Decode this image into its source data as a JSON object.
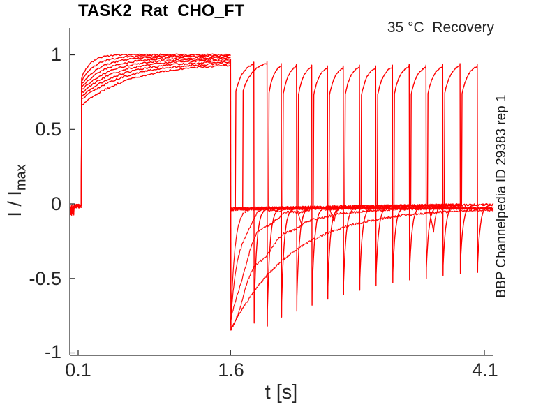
{
  "title": "TASK2  Rat  CHO_FT",
  "annotation": "35 °C  Recovery",
  "right_side_label": "BBP Channelpedia ID 29383 rep 1",
  "chart_data": {
    "type": "line",
    "title": "TASK2  Rat  CHO_FT",
    "subtitle": "35 °C  Recovery",
    "xlabel": "t [s]",
    "ylabel": "I / I_max",
    "ylabel_main": "I / I",
    "ylabel_sub": "max",
    "right_label": "BBP Channelpedia ID 29383 rep 1",
    "x_ticks": [
      "0.1",
      "1.6",
      "4.1"
    ],
    "y_ticks": [
      "1",
      "0.5",
      "0",
      "-0.5",
      "-1"
    ],
    "x_tick_values": [
      0.1,
      1.6,
      4.1
    ],
    "y_tick_values": [
      1,
      0.5,
      0,
      -0.5,
      -1
    ],
    "xlim": [
      0.018,
      4.19
    ],
    "ylim": [
      -1.02,
      1.18
    ],
    "grid": false,
    "legend": null,
    "line_color": "#ff0000",
    "axis_color": "#262626",
    "description": "Normalized current I/Imax vs time. Conditioning depolarization 0.13-1.6 s activates current to ~1.0; at 1.6 s tail spike to -0.85 followed by 15 overlaid recovery test pulses of increasing delay; baseline noise band slightly below 0.",
    "baseline": {
      "start_level": -0.035,
      "end_level": -0.005,
      "noise": 0.024,
      "pre_stim_level": -0.015,
      "pre_stim_dip": -0.06,
      "band_end_t": 3.87,
      "thin_end_t": 4.19
    },
    "conditioning_pulse": {
      "t_on": 0.131,
      "t_off": 1.6,
      "knee_range": [
        0.7,
        0.84
      ],
      "plateau_range": [
        0.952,
        1.0
      ],
      "tau_range": [
        0.09,
        0.45
      ],
      "n_sweeps": 8,
      "inner_sweep": {
        "knee": 0.66,
        "plateau": 0.945,
        "tau": 0.5
      },
      "spike_depth": -0.85,
      "recovery_taus": [
        0.04,
        0.09,
        0.18,
        0.35,
        0.6
      ],
      "recovery_wiggle": [
        0,
        1,
        1,
        1,
        0
      ]
    },
    "test_pulses": [
      {
        "start": 1.648,
        "end": 1.83,
        "peak": 0.955,
        "depth": -0.8
      },
      {
        "start": 1.72,
        "end": 1.96,
        "peak": 0.96,
        "depth": -0.82
      },
      {
        "start": 1.975,
        "end": 2.1,
        "peak": 0.945,
        "depth": -0.76
      },
      {
        "start": 2.115,
        "end": 2.25,
        "peak": 0.94,
        "depth": -0.72
      },
      {
        "start": 2.265,
        "end": 2.4,
        "peak": 0.935,
        "depth": -0.68
      },
      {
        "start": 2.415,
        "end": 2.555,
        "peak": 0.93,
        "depth": -0.64
      },
      {
        "start": 2.57,
        "end": 2.71,
        "peak": 0.93,
        "depth": -0.61
      },
      {
        "start": 2.725,
        "end": 2.87,
        "peak": 0.935,
        "depth": -0.58
      },
      {
        "start": 2.885,
        "end": 3.03,
        "peak": 0.93,
        "depth": -0.55
      },
      {
        "start": 3.045,
        "end": 3.195,
        "peak": 0.935,
        "depth": -0.53
      },
      {
        "start": 3.21,
        "end": 3.36,
        "peak": 0.94,
        "depth": -0.51
      },
      {
        "start": 3.375,
        "end": 3.525,
        "peak": 0.935,
        "depth": -0.5
      },
      {
        "start": 3.54,
        "end": 3.69,
        "peak": 0.94,
        "depth": -0.48
      },
      {
        "start": 3.705,
        "end": 3.86,
        "peak": 0.945,
        "depth": -0.47
      },
      {
        "start": 3.875,
        "end": 4.03,
        "peak": 0.94,
        "depth": -0.46
      }
    ],
    "extra_dips": [
      {
        "t": 2.3,
        "depth": -0.14
      },
      {
        "t": 2.62,
        "depth": -0.12
      },
      {
        "t": 3.6,
        "depth": -0.19
      }
    ]
  }
}
